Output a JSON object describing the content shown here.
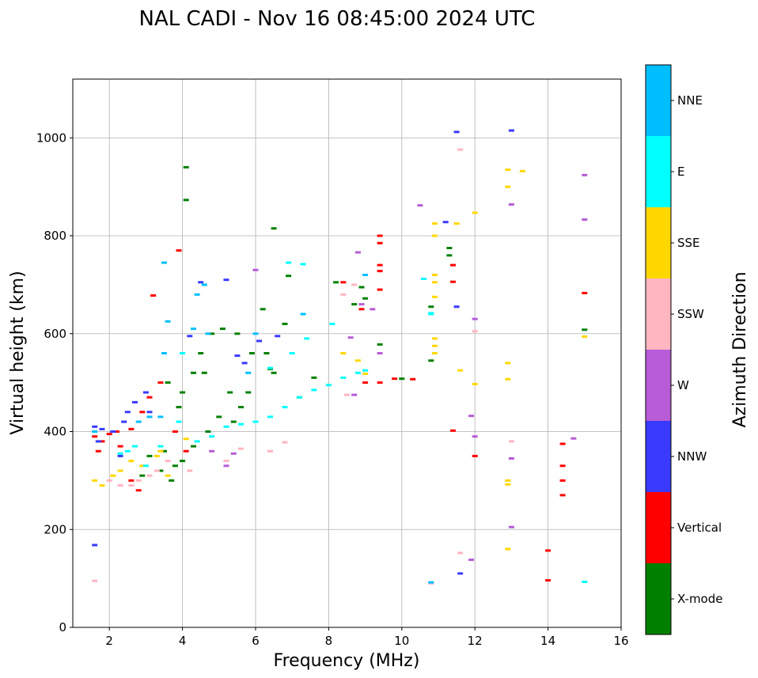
{
  "chart_data": {
    "type": "scatter",
    "title": "NAL CADI - Nov 16 08:45:00 2024 UTC",
    "xlabel": "Frequency (MHz)",
    "ylabel": "Virtual height (km)",
    "xlim": [
      1,
      16
    ],
    "ylim": [
      0,
      1120
    ],
    "xticks": [
      2,
      4,
      6,
      8,
      10,
      12,
      14,
      16
    ],
    "yticks": [
      0,
      200,
      400,
      600,
      800,
      1000
    ],
    "grid": true,
    "colorbar": {
      "label": "Azimuth Direction",
      "categories": [
        {
          "name": "X-mode",
          "color": "#008000"
        },
        {
          "name": "Vertical",
          "color": "#ff0000"
        },
        {
          "name": "NNW",
          "color": "#3a3aff"
        },
        {
          "name": "W",
          "color": "#b75bd6"
        },
        {
          "name": "SSW",
          "color": "#ffb6c1"
        },
        {
          "name": "SSE",
          "color": "#ffd700"
        },
        {
          "name": "E",
          "color": "#00ffff"
        },
        {
          "name": "NNE",
          "color": "#00bfff"
        }
      ]
    },
    "series": [
      {
        "name": "X-mode",
        "points": [
          [
            4.1,
            940
          ],
          [
            4.1,
            873
          ],
          [
            6.5,
            815
          ],
          [
            6.9,
            718
          ],
          [
            6.2,
            650
          ],
          [
            5.5,
            600
          ],
          [
            6.8,
            620
          ],
          [
            6.3,
            560
          ],
          [
            6.5,
            520
          ],
          [
            6.4,
            528
          ],
          [
            7.2,
            470
          ],
          [
            7.6,
            510
          ],
          [
            5.8,
            480
          ],
          [
            5.6,
            450
          ],
          [
            5.0,
            430
          ],
          [
            5.4,
            420
          ],
          [
            4.7,
            400
          ],
          [
            4.3,
            370
          ],
          [
            4.0,
            340
          ],
          [
            3.8,
            330
          ],
          [
            3.4,
            320
          ],
          [
            3.7,
            300
          ],
          [
            3.5,
            360
          ],
          [
            3.9,
            450
          ],
          [
            4.0,
            480
          ],
          [
            4.3,
            520
          ],
          [
            3.6,
            500
          ],
          [
            4.5,
            560
          ],
          [
            4.8,
            600
          ],
          [
            5.1,
            610
          ],
          [
            5.9,
            560
          ],
          [
            8.2,
            705
          ],
          [
            8.7,
            660
          ],
          [
            8.9,
            695
          ],
          [
            9.0,
            672
          ],
          [
            9.4,
            578
          ],
          [
            10.0,
            508
          ],
          [
            10.8,
            655
          ],
          [
            10.8,
            545
          ],
          [
            11.3,
            775
          ],
          [
            11.3,
            760
          ],
          [
            15.0,
            608
          ],
          [
            2.9,
            310
          ],
          [
            3.1,
            350
          ],
          [
            4.6,
            520
          ],
          [
            5.3,
            480
          ]
        ]
      },
      {
        "name": "Vertical",
        "points": [
          [
            1.6,
            390
          ],
          [
            1.8,
            380
          ],
          [
            2.0,
            395
          ],
          [
            2.2,
            400
          ],
          [
            2.6,
            405
          ],
          [
            2.9,
            440
          ],
          [
            3.1,
            470
          ],
          [
            3.4,
            500
          ],
          [
            1.7,
            360
          ],
          [
            2.3,
            370
          ],
          [
            2.6,
            300
          ],
          [
            2.8,
            280
          ],
          [
            3.8,
            400
          ],
          [
            4.1,
            360
          ],
          [
            3.9,
            770
          ],
          [
            3.2,
            678
          ],
          [
            8.4,
            705
          ],
          [
            8.9,
            650
          ],
          [
            9.0,
            500
          ],
          [
            9.4,
            800
          ],
          [
            9.4,
            785
          ],
          [
            9.4,
            740
          ],
          [
            9.4,
            728
          ],
          [
            9.4,
            690
          ],
          [
            9.4,
            500
          ],
          [
            9.8,
            508
          ],
          [
            10.3,
            507
          ],
          [
            11.4,
            706
          ],
          [
            11.4,
            740
          ],
          [
            11.4,
            402
          ],
          [
            12.0,
            350
          ],
          [
            14.0,
            96
          ],
          [
            14.0,
            157
          ],
          [
            14.4,
            375
          ],
          [
            14.4,
            330
          ],
          [
            14.4,
            300
          ],
          [
            14.4,
            270
          ],
          [
            15.0,
            683
          ]
        ]
      },
      {
        "name": "NNW",
        "points": [
          [
            1.6,
            410
          ],
          [
            1.8,
            405
          ],
          [
            2.1,
            400
          ],
          [
            2.4,
            420
          ],
          [
            2.5,
            440
          ],
          [
            2.7,
            460
          ],
          [
            3.0,
            480
          ],
          [
            3.1,
            440
          ],
          [
            1.6,
            168
          ],
          [
            1.7,
            380
          ],
          [
            2.3,
            350
          ],
          [
            4.2,
            595
          ],
          [
            4.5,
            705
          ],
          [
            5.2,
            710
          ],
          [
            5.5,
            555
          ],
          [
            5.7,
            540
          ],
          [
            6.1,
            585
          ],
          [
            6.6,
            595
          ],
          [
            11.2,
            828
          ],
          [
            11.5,
            1012
          ],
          [
            11.5,
            655
          ],
          [
            11.6,
            110
          ],
          [
            13.0,
            1015
          ]
        ]
      },
      {
        "name": "W",
        "points": [
          [
            5.4,
            355
          ],
          [
            5.2,
            330
          ],
          [
            4.8,
            360
          ],
          [
            6.0,
            730
          ],
          [
            8.6,
            592
          ],
          [
            8.8,
            766
          ],
          [
            8.9,
            660
          ],
          [
            8.7,
            475
          ],
          [
            9.2,
            650
          ],
          [
            9.4,
            560
          ],
          [
            10.5,
            862
          ],
          [
            11.9,
            432
          ],
          [
            11.9,
            138
          ],
          [
            12.0,
            630
          ],
          [
            12.0,
            390
          ],
          [
            13.0,
            864
          ],
          [
            13.0,
            345
          ],
          [
            13.0,
            205
          ],
          [
            14.7,
            386
          ],
          [
            15.0,
            924
          ],
          [
            15.0,
            833
          ]
        ]
      },
      {
        "name": "SSW",
        "points": [
          [
            1.6,
            95
          ],
          [
            2.0,
            300
          ],
          [
            2.3,
            290
          ],
          [
            2.6,
            290
          ],
          [
            2.8,
            300
          ],
          [
            3.1,
            310
          ],
          [
            3.3,
            320
          ],
          [
            3.6,
            340
          ],
          [
            4.2,
            320
          ],
          [
            5.2,
            340
          ],
          [
            5.6,
            365
          ],
          [
            6.4,
            360
          ],
          [
            6.8,
            378
          ],
          [
            8.4,
            680
          ],
          [
            8.7,
            700
          ],
          [
            8.5,
            475
          ],
          [
            10.8,
            90
          ],
          [
            11.6,
            976
          ],
          [
            11.6,
            152
          ],
          [
            12.0,
            605
          ],
          [
            13.0,
            380
          ]
        ]
      },
      {
        "name": "SSE",
        "points": [
          [
            1.6,
            300
          ],
          [
            1.8,
            290
          ],
          [
            2.1,
            310
          ],
          [
            2.3,
            320
          ],
          [
            2.6,
            340
          ],
          [
            2.9,
            330
          ],
          [
            3.3,
            350
          ],
          [
            3.6,
            310
          ],
          [
            3.4,
            360
          ],
          [
            4.1,
            385
          ],
          [
            8.4,
            560
          ],
          [
            8.8,
            545
          ],
          [
            9.0,
            518
          ],
          [
            10.9,
            825
          ],
          [
            10.9,
            800
          ],
          [
            10.9,
            720
          ],
          [
            10.9,
            705
          ],
          [
            10.9,
            675
          ],
          [
            10.9,
            590
          ],
          [
            10.9,
            575
          ],
          [
            10.9,
            560
          ],
          [
            11.5,
            825
          ],
          [
            11.6,
            525
          ],
          [
            12.0,
            847
          ],
          [
            12.0,
            497
          ],
          [
            12.9,
            935
          ],
          [
            12.9,
            900
          ],
          [
            12.9,
            540
          ],
          [
            12.9,
            507
          ],
          [
            12.9,
            300
          ],
          [
            12.9,
            292
          ],
          [
            12.9,
            160
          ],
          [
            13.3,
            932
          ],
          [
            15.0,
            594
          ]
        ]
      },
      {
        "name": "E",
        "points": [
          [
            2.3,
            355
          ],
          [
            2.5,
            360
          ],
          [
            2.7,
            370
          ],
          [
            3.0,
            330
          ],
          [
            3.4,
            370
          ],
          [
            3.9,
            420
          ],
          [
            4.4,
            380
          ],
          [
            4.8,
            390
          ],
          [
            5.2,
            410
          ],
          [
            5.6,
            415
          ],
          [
            6.0,
            420
          ],
          [
            6.4,
            430
          ],
          [
            6.8,
            450
          ],
          [
            7.2,
            470
          ],
          [
            7.6,
            485
          ],
          [
            8.0,
            495
          ],
          [
            8.4,
            510
          ],
          [
            8.8,
            520
          ],
          [
            9.0,
            525
          ],
          [
            7.0,
            560
          ],
          [
            7.4,
            590
          ],
          [
            6.4,
            530
          ],
          [
            6.9,
            745
          ],
          [
            7.3,
            742
          ],
          [
            4.0,
            560
          ],
          [
            8.1,
            620
          ],
          [
            10.6,
            712
          ],
          [
            10.8,
            640
          ],
          [
            10.8,
            642
          ],
          [
            15.0,
            93
          ]
        ]
      },
      {
        "name": "NNE",
        "points": [
          [
            1.6,
            400
          ],
          [
            2.8,
            420
          ],
          [
            3.1,
            430
          ],
          [
            3.4,
            430
          ],
          [
            3.5,
            560
          ],
          [
            3.6,
            625
          ],
          [
            3.5,
            745
          ],
          [
            4.3,
            610
          ],
          [
            4.4,
            680
          ],
          [
            4.6,
            700
          ],
          [
            4.7,
            600
          ],
          [
            5.8,
            520
          ],
          [
            6.0,
            600
          ],
          [
            7.3,
            640
          ],
          [
            9.0,
            720
          ],
          [
            10.8,
            92
          ]
        ]
      }
    ]
  }
}
